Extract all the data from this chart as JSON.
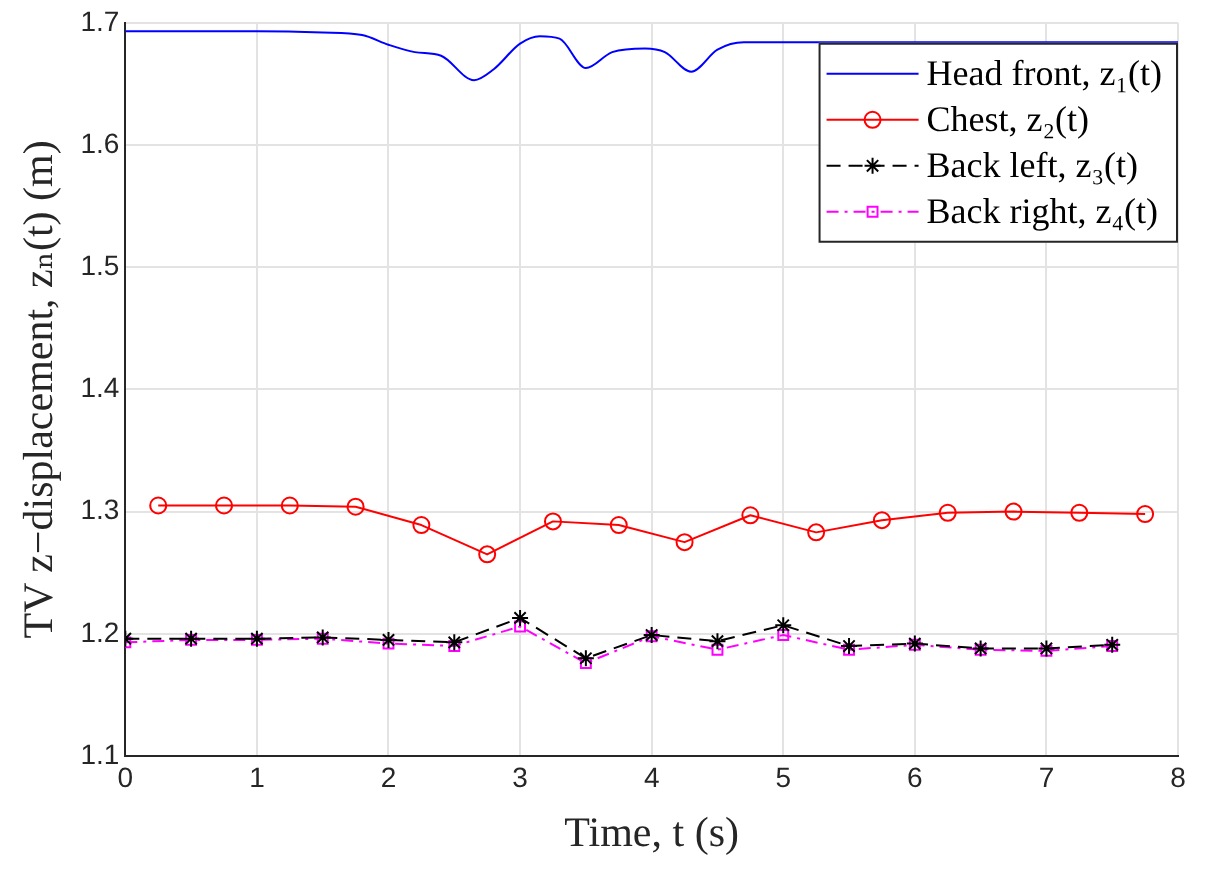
{
  "chart_data": {
    "type": "line",
    "xlabel": "Time, t (s)",
    "ylabel": "TV z−displacement, zₙ(t) (m)",
    "xlim": [
      0,
      8
    ],
    "xticks": [
      0,
      1,
      2,
      3,
      4,
      5,
      6,
      7,
      8
    ],
    "ylim": [
      1.1,
      1.7
    ],
    "yticks": [
      1.1,
      1.2,
      1.3,
      1.4,
      1.5,
      1.6,
      1.7
    ],
    "grid": true,
    "legend": "top right",
    "series": [
      {
        "name": "Head front, z₁(t)",
        "color": "#0000ff",
        "marker": "none",
        "line_style": "solid",
        "x": [
          0,
          1,
          1.5,
          1.8,
          2,
          2.2,
          2.4,
          2.65,
          2.8,
          3,
          3.15,
          3.3,
          3.5,
          3.7,
          3.95,
          4.1,
          4.3,
          4.5,
          4.7,
          5,
          8
        ],
        "values": [
          1.693,
          1.693,
          1.692,
          1.69,
          1.682,
          1.676,
          1.673,
          1.653,
          1.662,
          1.683,
          1.689,
          1.687,
          1.663,
          1.676,
          1.679,
          1.676,
          1.66,
          1.678,
          1.684,
          1.684,
          1.684
        ]
      },
      {
        "name": "Chest, z₂(t)",
        "color": "#ff0000",
        "marker": "circle",
        "line_style": "solid",
        "x": [
          0.25,
          0.75,
          1.25,
          1.75,
          2.25,
          2.75,
          3.25,
          3.75,
          4.25,
          4.75,
          5.25,
          5.75,
          6.25,
          6.75,
          7.25,
          7.75
        ],
        "values": [
          1.305,
          1.305,
          1.305,
          1.304,
          1.289,
          1.265,
          1.292,
          1.289,
          1.275,
          1.297,
          1.283,
          1.293,
          1.299,
          1.3,
          1.299,
          1.298
        ]
      },
      {
        "name": "Back left, z₃(t)",
        "color": "#000000",
        "marker": "cross",
        "line_style": "dashed",
        "x": [
          0,
          0.5,
          1,
          1.5,
          2,
          2.5,
          3,
          3.5,
          4,
          4.5,
          5,
          5.5,
          6,
          6.5,
          7,
          7.5
        ],
        "values": [
          1.196,
          1.196,
          1.196,
          1.197,
          1.195,
          1.193,
          1.213,
          1.18,
          1.199,
          1.194,
          1.207,
          1.19,
          1.192,
          1.188,
          1.188,
          1.191
        ]
      },
      {
        "name": "Back right, z₄(t)",
        "color": "#ff00ff",
        "marker": "square",
        "line_style": "dotted",
        "x": [
          0,
          0.5,
          1,
          1.5,
          2,
          2.5,
          3,
          3.5,
          4,
          4.5,
          5,
          5.5,
          6,
          6.5,
          7,
          7.5
        ],
        "values": [
          1.193,
          1.195,
          1.195,
          1.196,
          1.192,
          1.19,
          1.206,
          1.176,
          1.198,
          1.187,
          1.199,
          1.187,
          1.191,
          1.187,
          1.186,
          1.19
        ]
      }
    ]
  }
}
